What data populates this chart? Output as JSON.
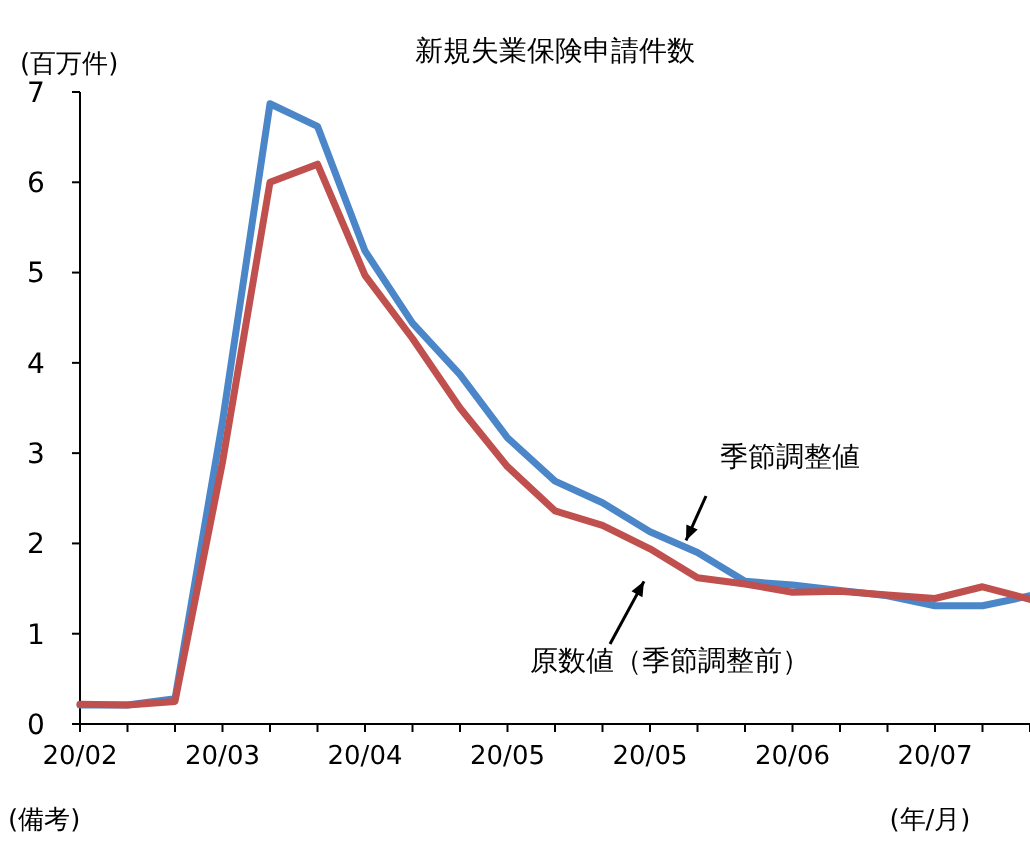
{
  "chart_data": {
    "type": "line",
    "title": "新規失業保険申請件数",
    "ylabel": "(百万件)",
    "xlabel": "(年/月)",
    "annotations": [
      "(備考)"
    ],
    "categories": [
      "20/02",
      null,
      null,
      "20/03",
      null,
      null,
      "20/04",
      null,
      null,
      "20/05",
      null,
      null,
      "20/05",
      null,
      null,
      "20/06",
      null,
      null,
      "20/07",
      null,
      null
    ],
    "series": [
      {
        "name": "季節調整値",
        "color": "#4a86c8",
        "values": [
          0.21,
          0.21,
          0.28,
          3.35,
          6.87,
          6.62,
          5.24,
          4.44,
          3.87,
          3.17,
          2.69,
          2.45,
          2.13,
          1.9,
          1.58,
          1.54,
          1.48,
          1.42,
          1.31,
          1.31,
          1.42
        ]
      },
      {
        "name": "原数値（季節調整前）",
        "color": "#c0504d",
        "values": [
          0.22,
          0.21,
          0.25,
          2.9,
          6.0,
          6.2,
          4.97,
          4.27,
          3.5,
          2.85,
          2.36,
          2.2,
          1.94,
          1.62,
          1.55,
          1.46,
          1.47,
          1.43,
          1.39,
          1.52,
          1.38
        ]
      }
    ],
    "ylim": [
      0,
      7
    ],
    "yticks": [
      0,
      1,
      2,
      3,
      4,
      5,
      6,
      7
    ],
    "grid": false,
    "legend": false,
    "marker": "none",
    "line_style": "solid"
  }
}
